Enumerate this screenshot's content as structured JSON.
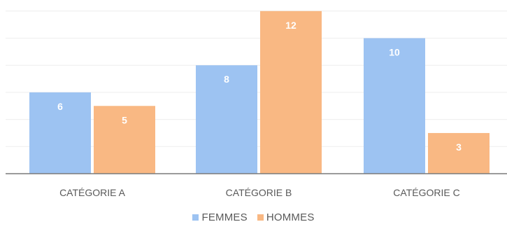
{
  "chart_data": {
    "type": "bar",
    "categories": [
      "CATÉGORIE A",
      "CATÉGORIE B",
      "CATÉGORIE C"
    ],
    "series": [
      {
        "name": "FEMMES",
        "values": [
          6,
          8,
          10
        ],
        "color": "#9dc3f2"
      },
      {
        "name": "HOMMES",
        "values": [
          5,
          12,
          3
        ],
        "color": "#f9b883"
      }
    ],
    "title": "",
    "xlabel": "",
    "ylabel": "",
    "ylim": [
      0,
      12
    ],
    "grid": true,
    "legend_position": "bottom",
    "data_labels": true
  }
}
